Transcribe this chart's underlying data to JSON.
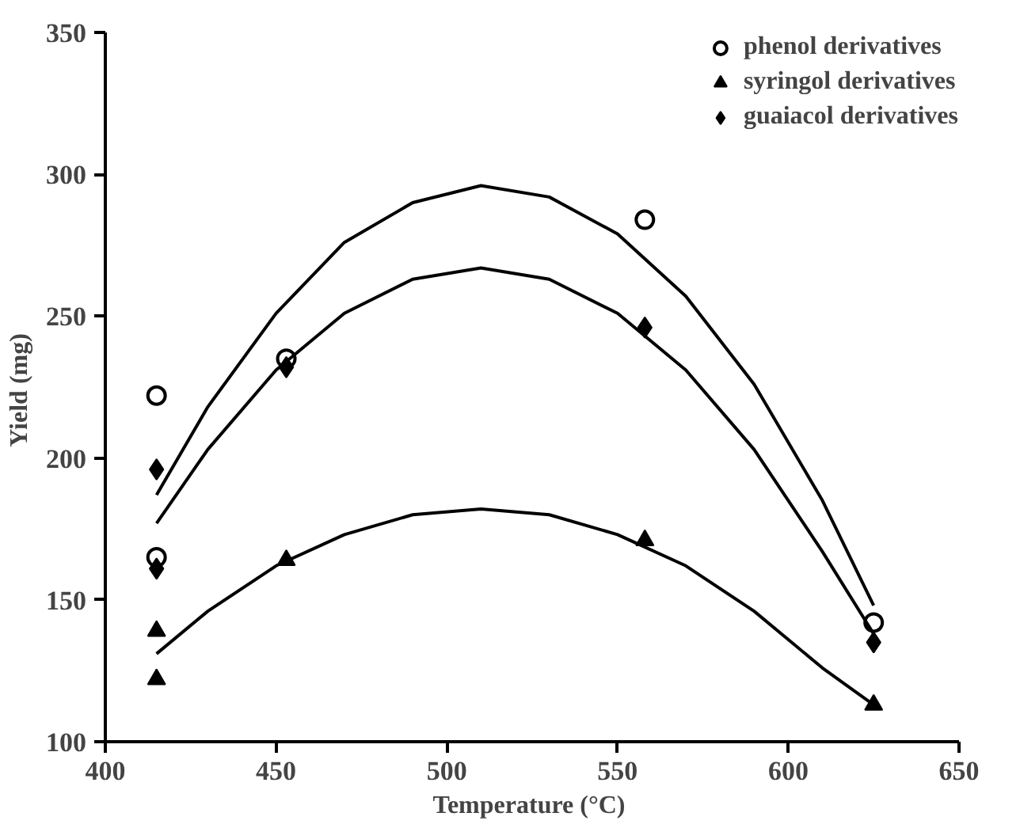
{
  "chart_data": {
    "type": "scatter",
    "xlabel": "Temperature  (°C)",
    "ylabel": "Yield  (mg)",
    "xlim": [
      400,
      650
    ],
    "xticks": [
      400,
      450,
      500,
      550,
      600,
      650
    ],
    "ylim": [
      100,
      350
    ],
    "yticks": [
      100,
      150,
      200,
      250,
      300,
      350
    ],
    "grid": false,
    "legend": "top right",
    "series": [
      {
        "name": "phenol derivatives",
        "color": "#000000",
        "marker": "circle",
        "x": [
          415,
          415,
          453,
          558,
          625
        ],
        "values": [
          222,
          165,
          235,
          284,
          142
        ]
      },
      {
        "name": "syringol derivatives",
        "color": "#000000",
        "marker": "triangle",
        "x": [
          415,
          415,
          453,
          558,
          625
        ],
        "values": [
          139,
          122,
          164,
          171,
          113
        ]
      },
      {
        "name": "guaiacol derivatives",
        "color": "#000000",
        "marker": "diamond",
        "x": [
          415,
          415,
          453,
          558,
          625
        ],
        "values": [
          196,
          161,
          232,
          246,
          135
        ]
      },
      {
        "type": "line",
        "color": "#000000",
        "marker": "none",
        "x": [
          415,
          430,
          450,
          470,
          490,
          510,
          530,
          550,
          570,
          590,
          610,
          625
        ],
        "values": [
          187,
          218,
          251,
          276,
          290,
          296,
          292,
          279,
          257,
          226,
          185,
          148
        ]
      },
      {
        "type": "line",
        "color": "#000000",
        "marker": "none",
        "x": [
          415,
          430,
          450,
          470,
          490,
          510,
          530,
          550,
          570,
          590,
          610,
          625
        ],
        "values": [
          177,
          203,
          231,
          251,
          263,
          267,
          263,
          251,
          231,
          203,
          167,
          138
        ]
      },
      {
        "type": "line",
        "color": "#000000",
        "marker": "none",
        "x": [
          415,
          430,
          450,
          470,
          490,
          510,
          530,
          550,
          570,
          590,
          610,
          625
        ],
        "values": [
          131,
          146,
          162,
          173,
          180,
          182,
          180,
          173,
          162,
          146,
          126,
          113
        ]
      }
    ]
  }
}
